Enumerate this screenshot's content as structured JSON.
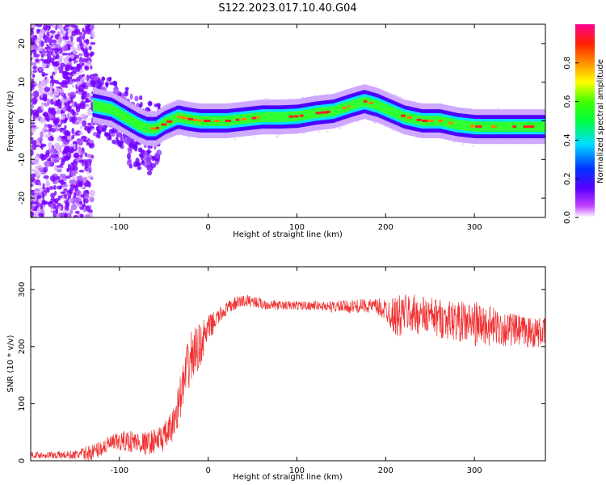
{
  "title": "S122.2023.017.10.40.G04",
  "colors": {
    "snr_line": "#f03030",
    "background": "#ffffff",
    "axis": "#000000"
  },
  "chart_data": [
    {
      "type": "heatmap",
      "xlabel": "Height of straight line (km)",
      "ylabel": "Frequency (Hz)",
      "xlim": [
        -200,
        380
      ],
      "ylim": [
        -25,
        25
      ],
      "xticks": [
        -100,
        0,
        100,
        200,
        300
      ],
      "yticks": [
        -20,
        -10,
        0,
        10,
        20
      ],
      "grid": false,
      "description_series": {
        "ridge_x": [
          -130,
          -110,
          -95,
          -80,
          -70,
          -60,
          -50,
          -35,
          -25,
          -10,
          0,
          20,
          40,
          60,
          80,
          100,
          120,
          140,
          160,
          175,
          190,
          205,
          220,
          240,
          260,
          280,
          300,
          320,
          340,
          360,
          380
        ],
        "ridge_freq": [
          4,
          3,
          1,
          -1,
          -2,
          -2,
          -0.5,
          1,
          0.5,
          0,
          0,
          0,
          0.5,
          1,
          1,
          1.2,
          2,
          2.5,
          4,
          5,
          4,
          2.5,
          1,
          0,
          0,
          -1,
          -1.5,
          -1.5,
          -1.5,
          -1.5,
          -1.5
        ]
      },
      "colorbar": {
        "label": "Normalized spectral amplitude",
        "range": [
          0,
          1
        ],
        "ticks": [
          "0.0",
          "0.2",
          "0.4",
          "0.6",
          "0.8"
        ]
      }
    },
    {
      "type": "line",
      "xlabel": "Height of straight line (km)",
      "ylabel": "SNR (10 * v/v)",
      "xlim": [
        -200,
        380
      ],
      "ylim": [
        0,
        340
      ],
      "xticks": [
        -100,
        0,
        100,
        200,
        300
      ],
      "yticks": [
        0,
        100,
        200,
        300
      ],
      "grid": false,
      "series": [
        {
          "x": [
            -200,
            -150,
            -130,
            -110,
            -90,
            -70,
            -50,
            -40,
            -30,
            -20,
            -10,
            0,
            10,
            20,
            30,
            40,
            50,
            60,
            80,
            100,
            120,
            140,
            160,
            180,
            200,
            215,
            220,
            240,
            260,
            280,
            300,
            320,
            340,
            360,
            380
          ],
          "values": [
            10,
            10,
            15,
            30,
            35,
            30,
            40,
            60,
            120,
            180,
            200,
            230,
            250,
            265,
            275,
            280,
            280,
            275,
            272,
            272,
            272,
            270,
            270,
            272,
            265,
            250,
            260,
            255,
            250,
            245,
            240,
            235,
            230,
            225,
            225
          ],
          "noise": [
            5,
            8,
            15,
            15,
            20,
            20,
            25,
            30,
            40,
            50,
            40,
            25,
            15,
            12,
            12,
            12,
            10,
            10,
            8,
            8,
            8,
            10,
            12,
            12,
            20,
            40,
            35,
            35,
            35,
            35,
            40,
            35,
            30,
            28,
            25
          ]
        }
      ]
    }
  ]
}
